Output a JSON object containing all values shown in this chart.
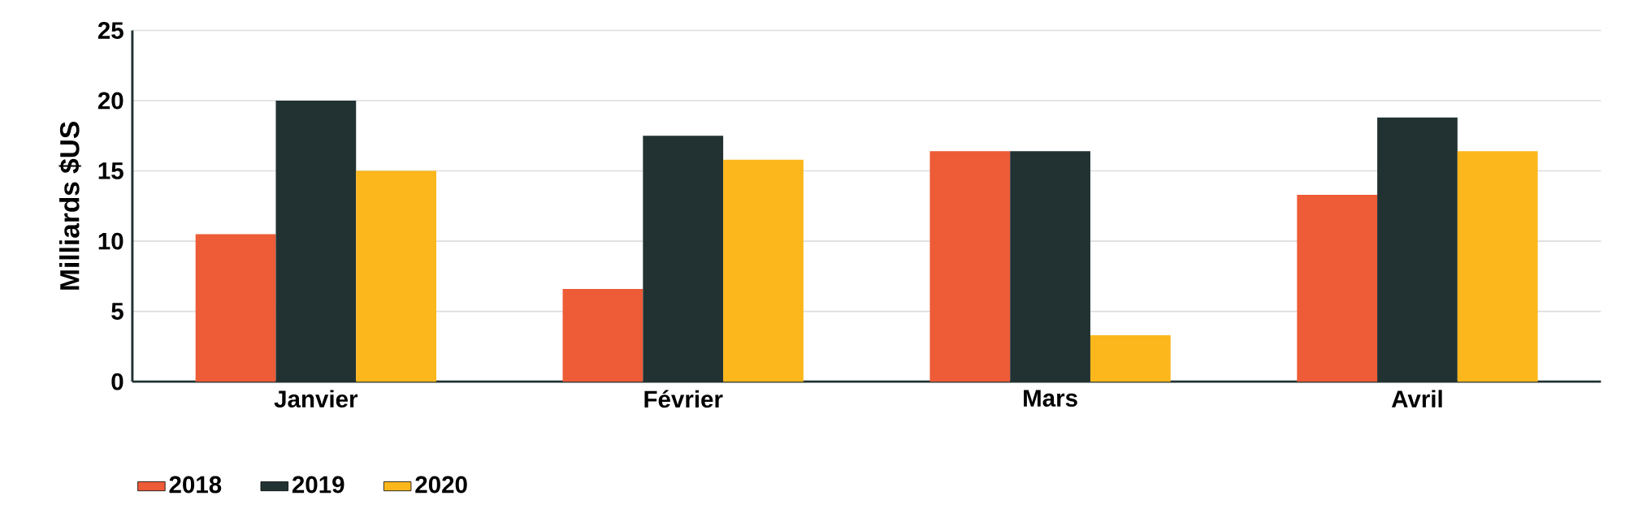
{
  "chart_data": {
    "type": "bar",
    "ylabel": "Milliards $US",
    "categories": [
      "Janvier",
      "Février",
      "Mars",
      "Avril"
    ],
    "series": [
      {
        "name": "2018",
        "color": "#ed5b37",
        "values": [
          10.5,
          6.6,
          16.4,
          13.3
        ]
      },
      {
        "name": "2019",
        "color": "#223233",
        "values": [
          20,
          17.5,
          16.4,
          18.8
        ]
      },
      {
        "name": "2020",
        "color": "#fcb71c",
        "values": [
          15,
          15.8,
          3.3,
          16.4
        ]
      }
    ],
    "ylim": [
      0,
      25
    ],
    "yticks": [
      0,
      5,
      10,
      15,
      20,
      25
    ],
    "grid": "y",
    "legend": "bottom left"
  }
}
